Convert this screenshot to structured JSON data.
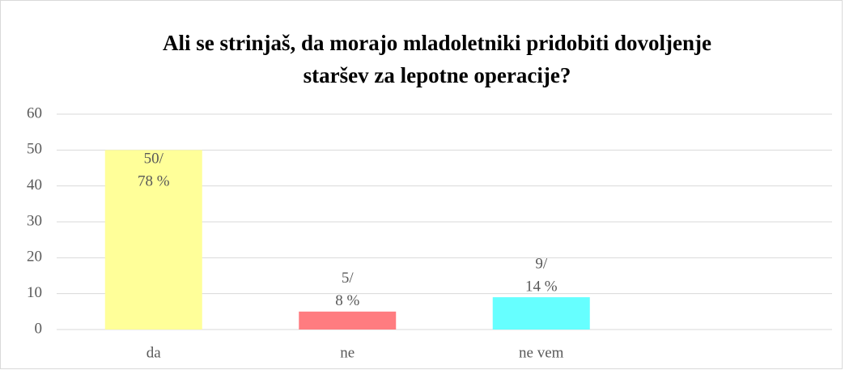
{
  "chart_data": {
    "type": "bar",
    "title": [
      "Ali se strinjaš, da morajo mladoletniki pridobiti dovoljenje",
      "staršev za lepotne operacije?"
    ],
    "categories": [
      "da",
      "ne",
      "ne vem",
      null
    ],
    "values": [
      50,
      5,
      9,
      null
    ],
    "value_labels": [
      [
        "50/",
        "78 %"
      ],
      [
        "5/",
        "8 %"
      ],
      [
        "9/",
        "14 %"
      ],
      null
    ],
    "colors": [
      "#ffff99",
      "#ff7c80",
      "#66ffff",
      null
    ],
    "ylim": [
      0,
      60
    ],
    "yticks": [
      0,
      10,
      20,
      30,
      40,
      50,
      60
    ],
    "grid": true
  }
}
